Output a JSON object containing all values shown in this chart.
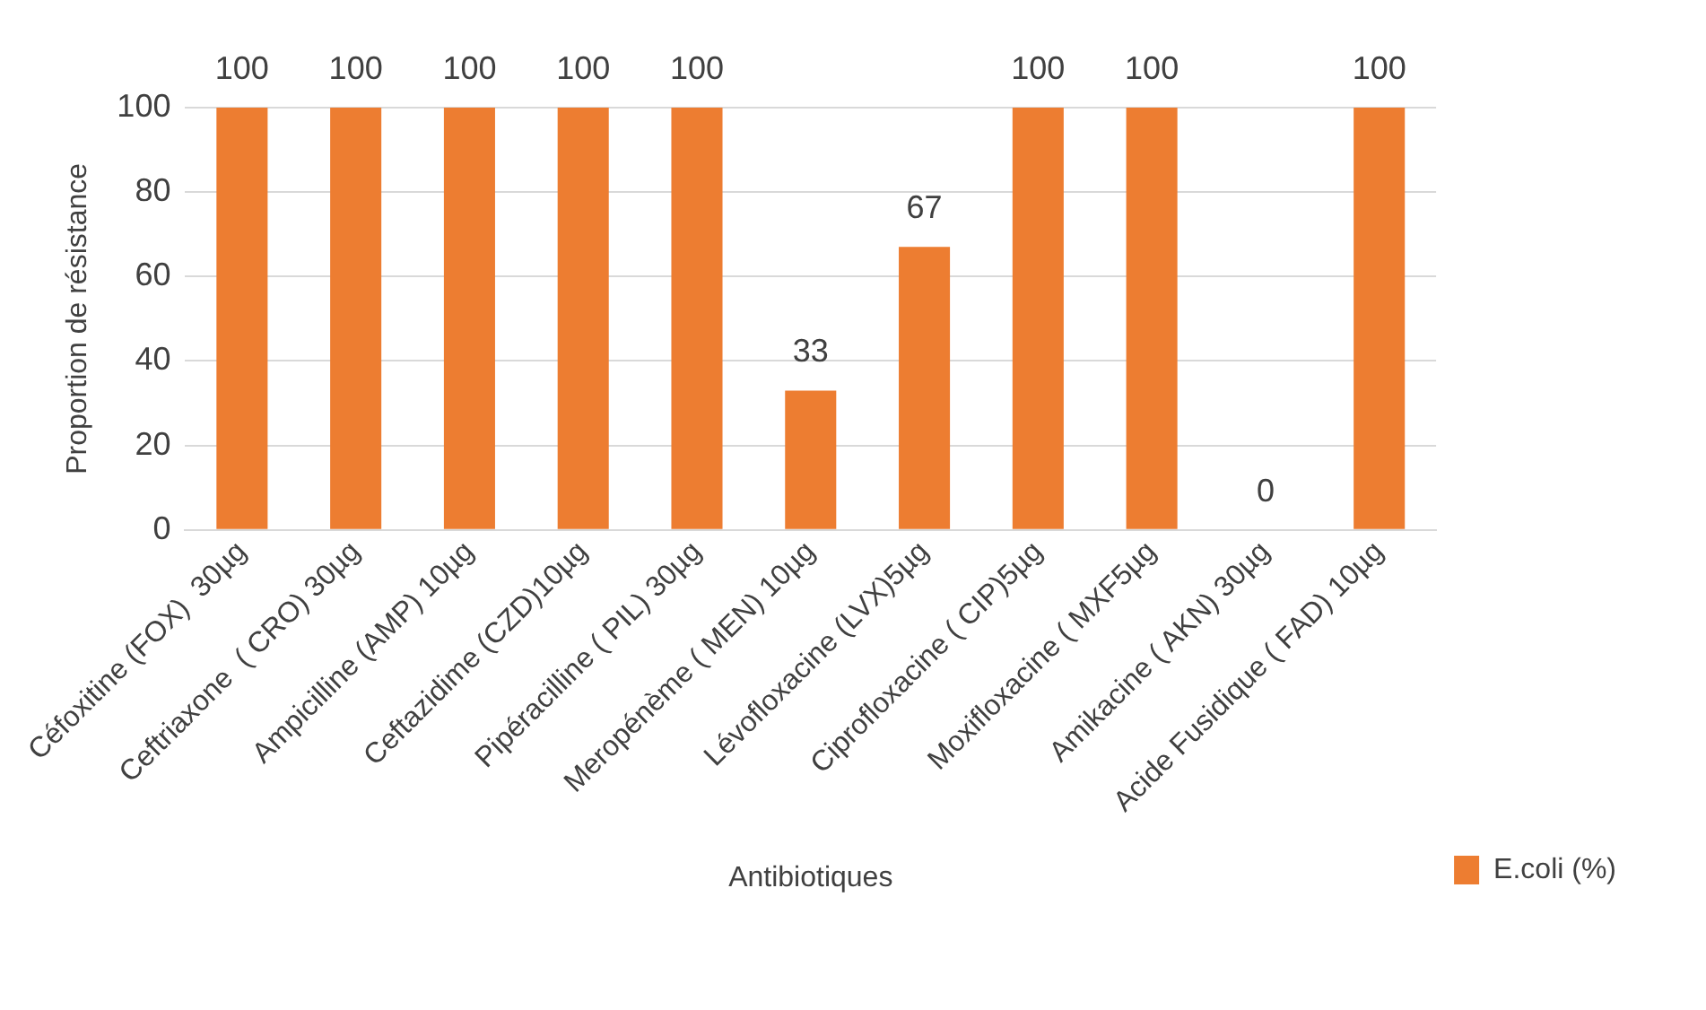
{
  "chart_data": {
    "type": "bar",
    "xlabel": "Antibiotiques",
    "ylabel": "Proportion de résistance",
    "categories": [
      "Céfoxitine (FOX)  30µg",
      "Ceftriaxone  ( CRO) 30µg",
      "Ampicilline (AMP) 10µg",
      "Ceftazidime (CZD)10µg",
      "Pipéracilline ( PIL) 30µg",
      "Meropénème ( MEN) 10µg",
      "Lévofloxacine (LVX)5µg",
      "Ciprofloxacine ( CIP)5µg",
      "Moxifloxacine ( MXF5µg",
      "Amikacine ( AKN) 30µg",
      "Acide Fusidique ( FAD) 10µg"
    ],
    "series": [
      {
        "name": "E.coli (%)",
        "color": "#ed7d31",
        "values": [
          100,
          100,
          100,
          100,
          100,
          33,
          67,
          100,
          100,
          0,
          100
        ]
      }
    ],
    "ylim": [
      0,
      100
    ],
    "yticks": [
      0,
      20,
      40,
      60,
      80,
      100
    ],
    "grid": "y",
    "legend": "right",
    "data_labels": true
  }
}
